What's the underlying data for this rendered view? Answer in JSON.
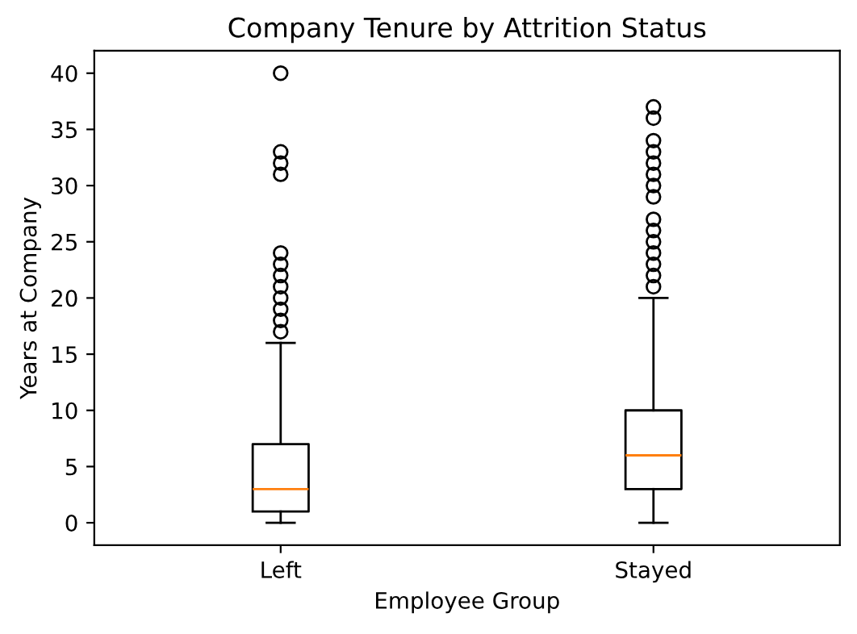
{
  "chart_data": {
    "type": "box",
    "title": "Company Tenure by Attrition Status",
    "xlabel": "Employee Group",
    "ylabel": "Years at Company",
    "categories": [
      "Left",
      "Stayed"
    ],
    "boxes": [
      {
        "low": 0,
        "q1": 1,
        "median": 3,
        "q3": 7,
        "high": 16,
        "outliers": [
          17,
          18,
          19,
          20,
          21,
          22,
          23,
          24,
          31,
          32,
          33,
          40
        ]
      },
      {
        "low": 0,
        "q1": 3,
        "median": 6,
        "q3": 10,
        "high": 20,
        "outliers": [
          21,
          22,
          23,
          24,
          25,
          26,
          27,
          29,
          30,
          31,
          32,
          33,
          34,
          36,
          37
        ]
      }
    ],
    "ylim": [
      -2,
      42
    ],
    "yticks": [
      0,
      5,
      10,
      15,
      20,
      25,
      30,
      35,
      40
    ],
    "grid": false
  }
}
